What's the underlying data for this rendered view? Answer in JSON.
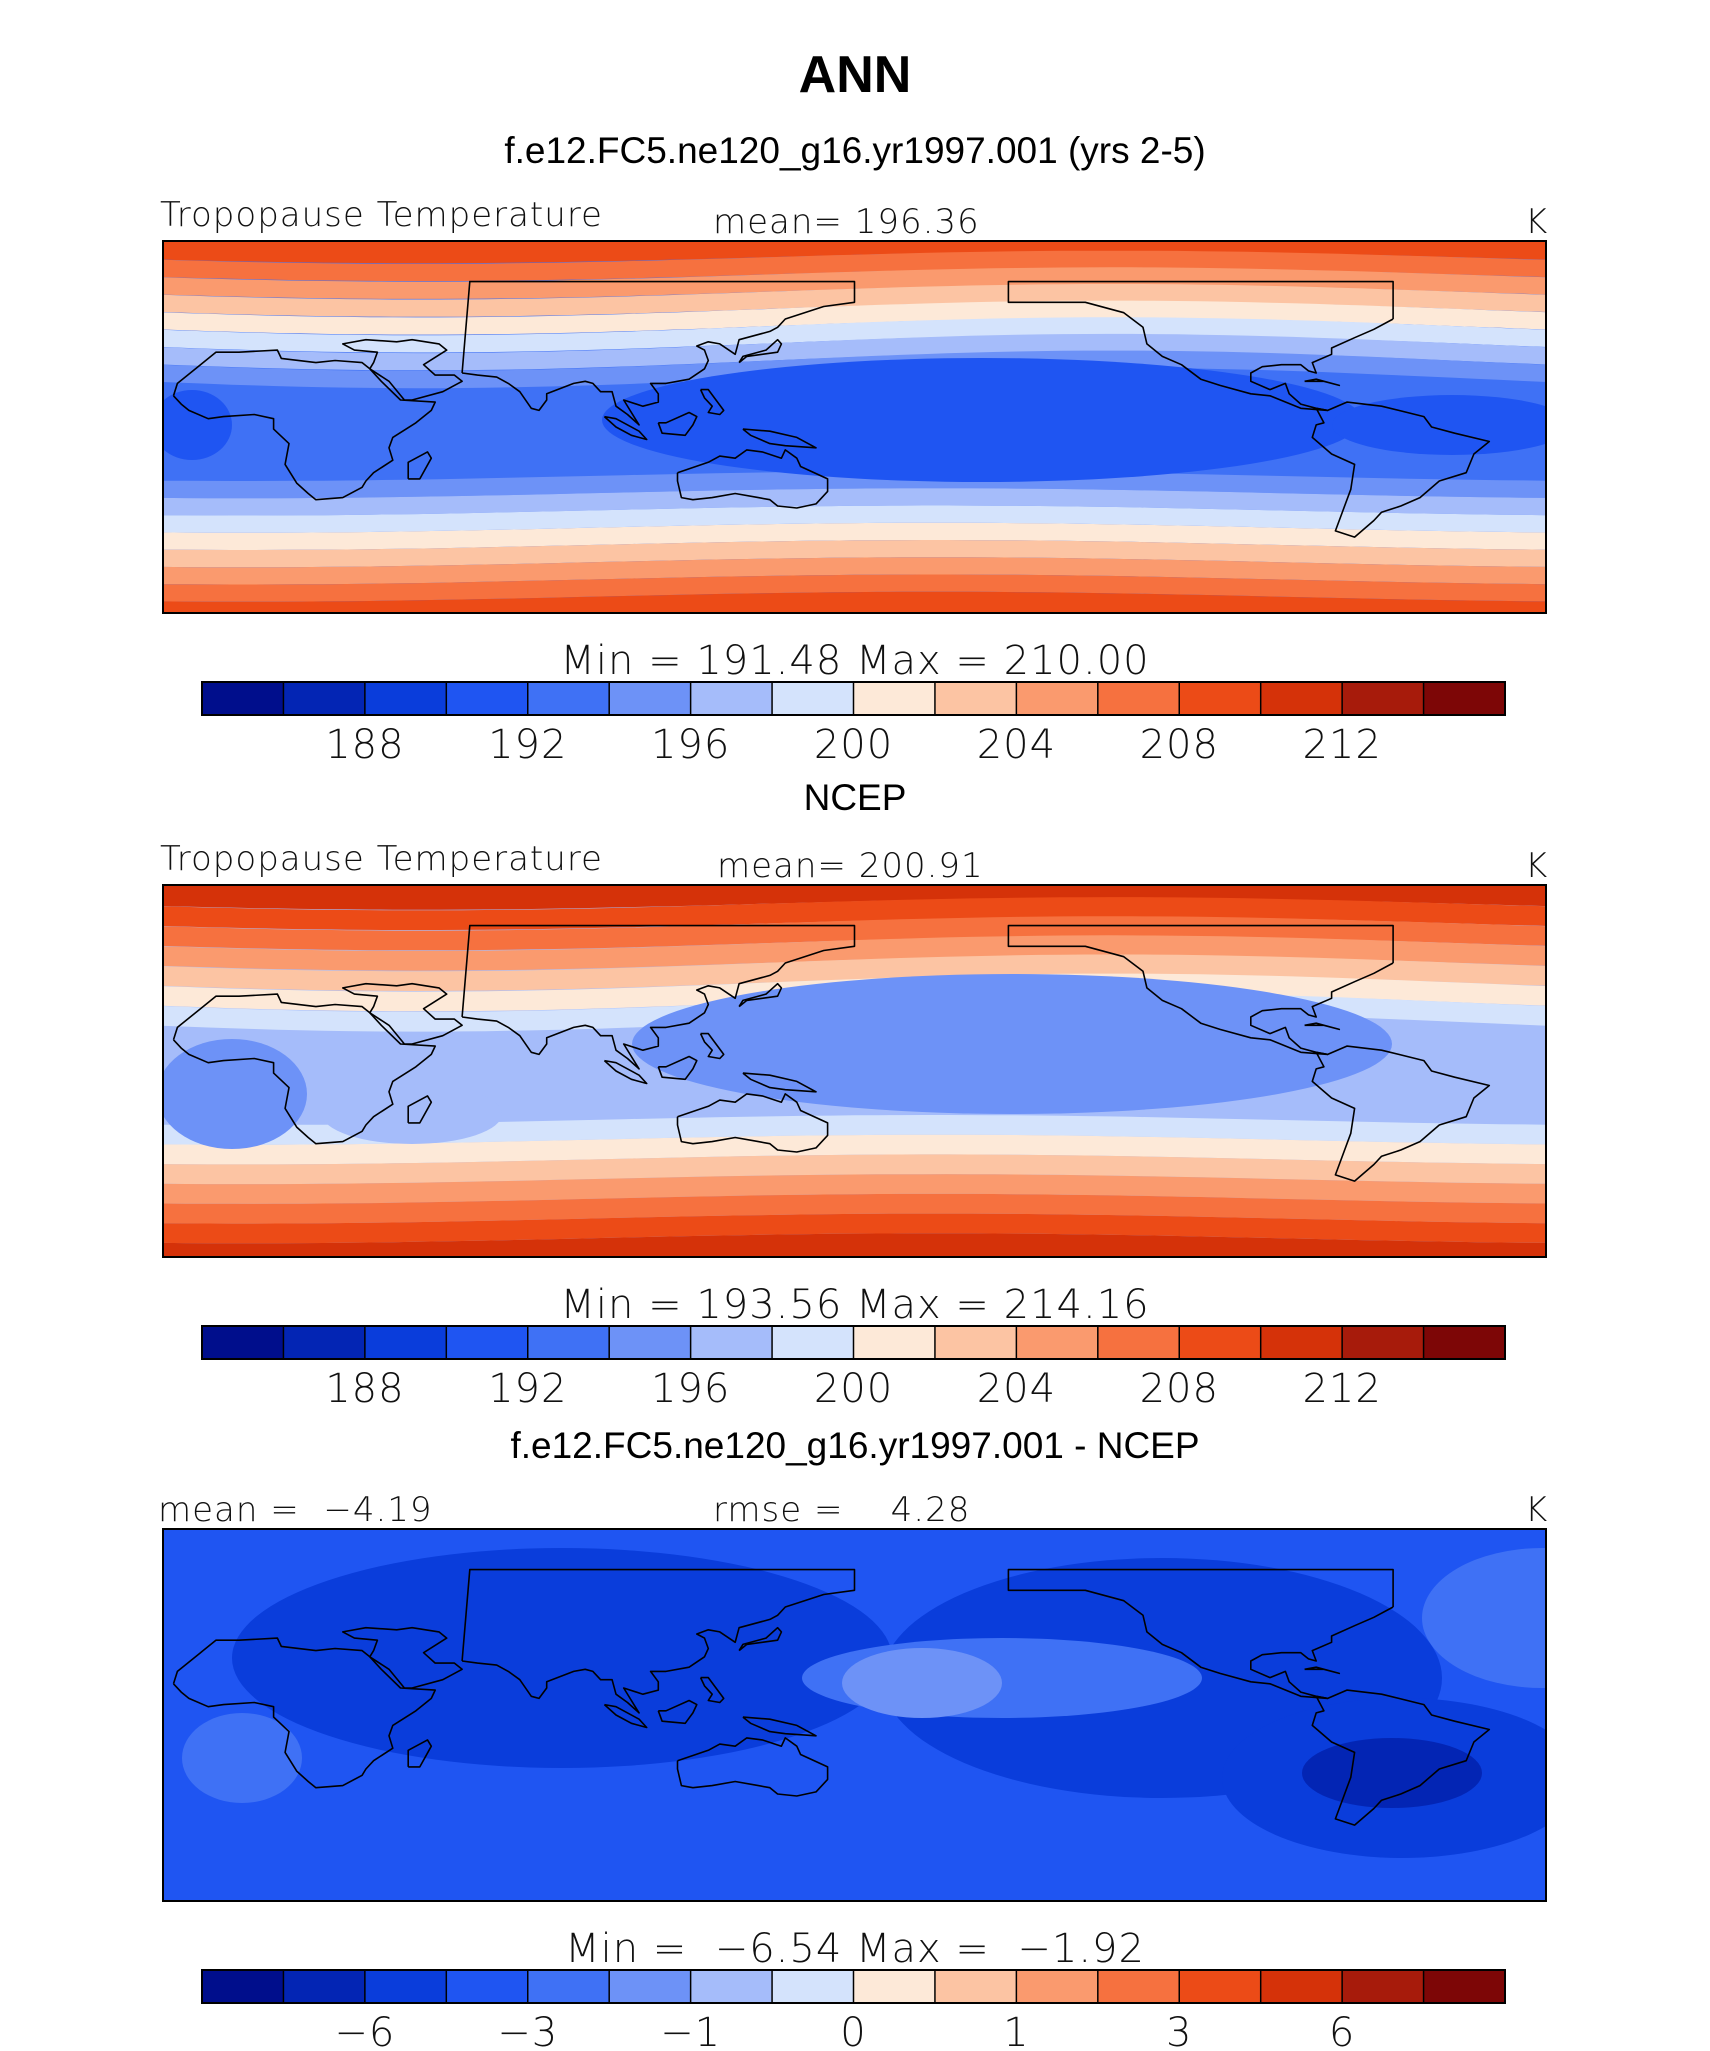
{
  "title": "ANN",
  "chart_data": [
    {
      "type": "contour-map",
      "panel_title": "f.e12.FC5.ne120_g16.yr1997.001 (yrs 2-5)",
      "left_label": "Tropopause Temperature",
      "center_label": "mean= 196.36",
      "units": "K",
      "variable": "Tropopause Temperature",
      "mean": 196.36,
      "colorbar_stats": "Min = 191.48 Max = 210.00",
      "min": 191.48,
      "max": 210.0,
      "levels": [
        186,
        188,
        190,
        192,
        194,
        196,
        198,
        200,
        202,
        204,
        206,
        208,
        210,
        212,
        214
      ],
      "tick_labels": [
        "188",
        "192",
        "196",
        "200",
        "204",
        "208",
        "212"
      ],
      "tick_levels": [
        188,
        192,
        196,
        200,
        204,
        208,
        212
      ],
      "palette": [
        "#000e8c",
        "#0325b4",
        "#0a3ddb",
        "#1f55f2",
        "#3f71f5",
        "#6d92f7",
        "#a5bcfa",
        "#d4e3fc",
        "#fde9d8",
        "#fcc4a3",
        "#fa9a6e",
        "#f6713f",
        "#ec4b17",
        "#d53209",
        "#a71b0b",
        "#7d0606"
      ]
    },
    {
      "type": "contour-map",
      "panel_title": "NCEP",
      "left_label": "Tropopause Temperature",
      "center_label": "mean= 200.91",
      "units": "K",
      "variable": "Tropopause Temperature",
      "mean": 200.91,
      "colorbar_stats": "Min = 193.56 Max = 214.16",
      "min": 193.56,
      "max": 214.16,
      "levels": [
        186,
        188,
        190,
        192,
        194,
        196,
        198,
        200,
        202,
        204,
        206,
        208,
        210,
        212,
        214
      ],
      "tick_labels": [
        "188",
        "192",
        "196",
        "200",
        "204",
        "208",
        "212"
      ],
      "tick_levels": [
        188,
        192,
        196,
        200,
        204,
        208,
        212
      ],
      "palette": [
        "#000e8c",
        "#0325b4",
        "#0a3ddb",
        "#1f55f2",
        "#3f71f5",
        "#6d92f7",
        "#a5bcfa",
        "#d4e3fc",
        "#fde9d8",
        "#fcc4a3",
        "#fa9a6e",
        "#f6713f",
        "#ec4b17",
        "#d53209",
        "#a71b0b",
        "#7d0606"
      ]
    },
    {
      "type": "contour-map",
      "panel_title": "f.e12.FC5.ne120_g16.yr1997.001 - NCEP",
      "left_label": "mean =  −4.19",
      "center_label": "rmse =    4.28",
      "units": "K",
      "mean": -4.19,
      "rmse": 4.28,
      "colorbar_stats": "Min =  −6.54 Max =  −1.92",
      "min": -6.54,
      "max": -1.92,
      "levels": [
        -8,
        -6,
        -4,
        -3,
        -2,
        -1,
        -0.5,
        0,
        0.5,
        1,
        2,
        3,
        4,
        6,
        8
      ],
      "tick_labels": [
        "−6",
        "−3",
        "−1",
        "0",
        "1",
        "3",
        "6"
      ],
      "tick_levels": [
        -6,
        -3,
        -1,
        0,
        1,
        3,
        6
      ],
      "palette": [
        "#000e8c",
        "#0325b4",
        "#0a3ddb",
        "#1f55f2",
        "#3f71f5",
        "#6d92f7",
        "#a5bcfa",
        "#d4e3fc",
        "#fde9d8",
        "#fcc4a3",
        "#fa9a6e",
        "#f6713f",
        "#ec4b17",
        "#d53209",
        "#a71b0b",
        "#7d0606"
      ]
    }
  ]
}
